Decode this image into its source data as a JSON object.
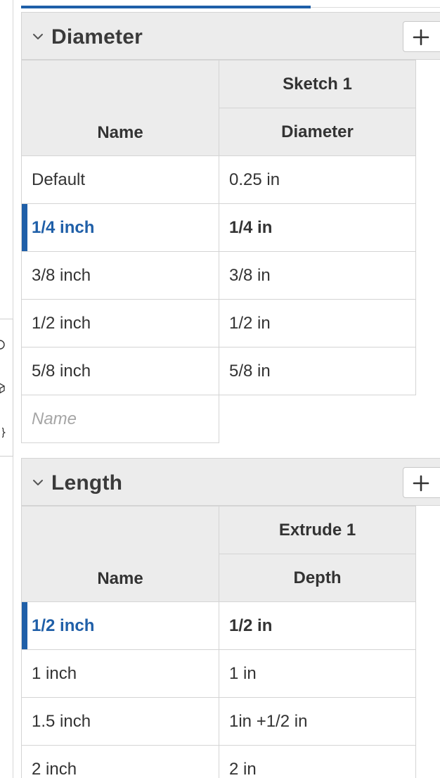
{
  "side_tools": [
    {
      "icon": "circle-icon"
    },
    {
      "icon": "cube-icon"
    },
    {
      "icon": "curly-braces-icon"
    }
  ],
  "sections": [
    {
      "title": "Diameter",
      "feature_header": "Sketch 1",
      "name_header": "Name",
      "param_header": "Diameter",
      "rows": [
        {
          "name": "Default",
          "value": "0.25 in",
          "active": false
        },
        {
          "name": "1/4 inch",
          "value": "1/4 in",
          "active": true
        },
        {
          "name": "3/8 inch",
          "value": "3/8 in",
          "active": false
        },
        {
          "name": "1/2 inch",
          "value": "1/2 in",
          "active": false
        },
        {
          "name": "5/8 inch",
          "value": "5/8 in",
          "active": false
        }
      ],
      "new_row_placeholder": "Name"
    },
    {
      "title": "Length",
      "feature_header": "Extrude 1",
      "name_header": "Name",
      "param_header": "Depth",
      "rows": [
        {
          "name": "1/2 inch",
          "value": "1/2 in",
          "active": true
        },
        {
          "name": "1 inch",
          "value": "1 in",
          "active": false
        },
        {
          "name": "1.5 inch",
          "value": "1in +1/2 in",
          "active": false
        },
        {
          "name": "2 inch",
          "value": "2 in",
          "active": false
        }
      ]
    }
  ],
  "colors": {
    "accent": "#1f5fa8",
    "header_bg": "#ececec",
    "border": "#d4d4d4",
    "placeholder": "#a6a6a6"
  }
}
